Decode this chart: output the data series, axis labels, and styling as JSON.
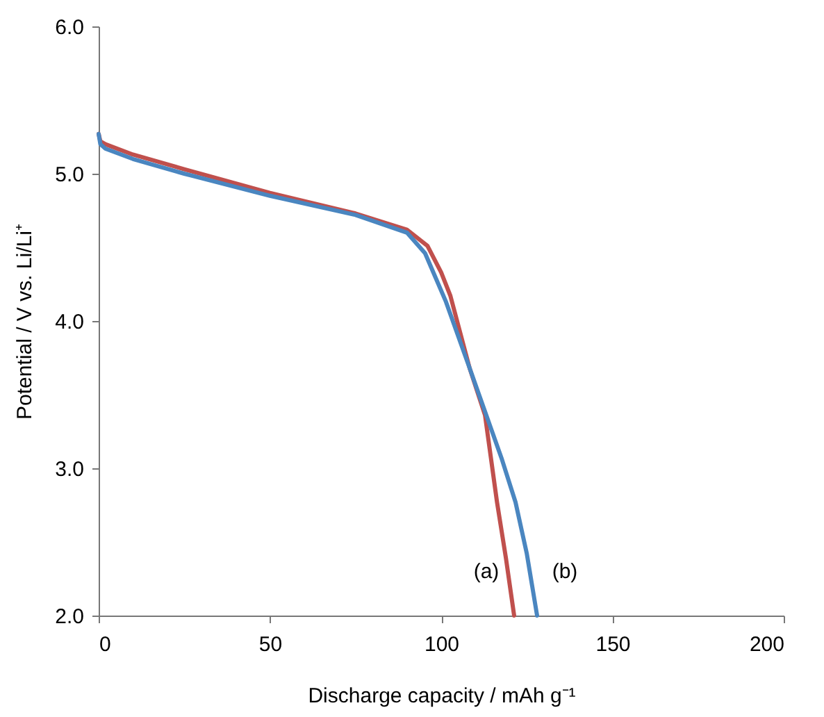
{
  "chart_data": {
    "type": "line",
    "xlabel": "Discharge capacity / mAh g⁻¹",
    "ylabel": "Potential / V vs. Li/Li⁺",
    "xlim": [
      0,
      200
    ],
    "xticks": [
      0,
      50,
      100,
      150,
      200
    ],
    "ylim": [
      2.0,
      6.0
    ],
    "yticks": [
      {
        "value": 2,
        "label": "2.0"
      },
      {
        "value": 3,
        "label": "3.0"
      },
      {
        "value": 4,
        "label": "4.0"
      },
      {
        "value": 5,
        "label": "5.0"
      },
      {
        "value": 6,
        "label": "6.0"
      }
    ],
    "grid": false,
    "marker": "none",
    "line_style": "solid",
    "series": [
      {
        "color": "#c0504d",
        "x": [
          0,
          0.5,
          2,
          10,
          25,
          50,
          75,
          90,
          96,
          100,
          102.7,
          108.3,
          112.8,
          116.3,
          118.9,
          121.3
        ],
        "values": [
          5.27,
          5.22,
          5.2,
          5.13,
          5.03,
          4.87,
          4.73,
          4.62,
          4.51,
          4.33,
          4.17,
          3.68,
          3.36,
          2.77,
          2.39,
          2.0
        ]
      },
      {
        "color": "#4a86c0",
        "x": [
          0,
          0.5,
          2,
          10,
          25,
          50,
          75,
          90,
          95.3,
          101.4,
          108.3,
          117.6,
          121.7,
          125,
          128
        ],
        "values": [
          5.27,
          5.2,
          5.17,
          5.1,
          5.0,
          4.85,
          4.72,
          4.6,
          4.46,
          4.13,
          3.68,
          3.07,
          2.77,
          2.42,
          2.0
        ]
      }
    ],
    "annotations": [
      "(a)",
      "(b)"
    ]
  }
}
